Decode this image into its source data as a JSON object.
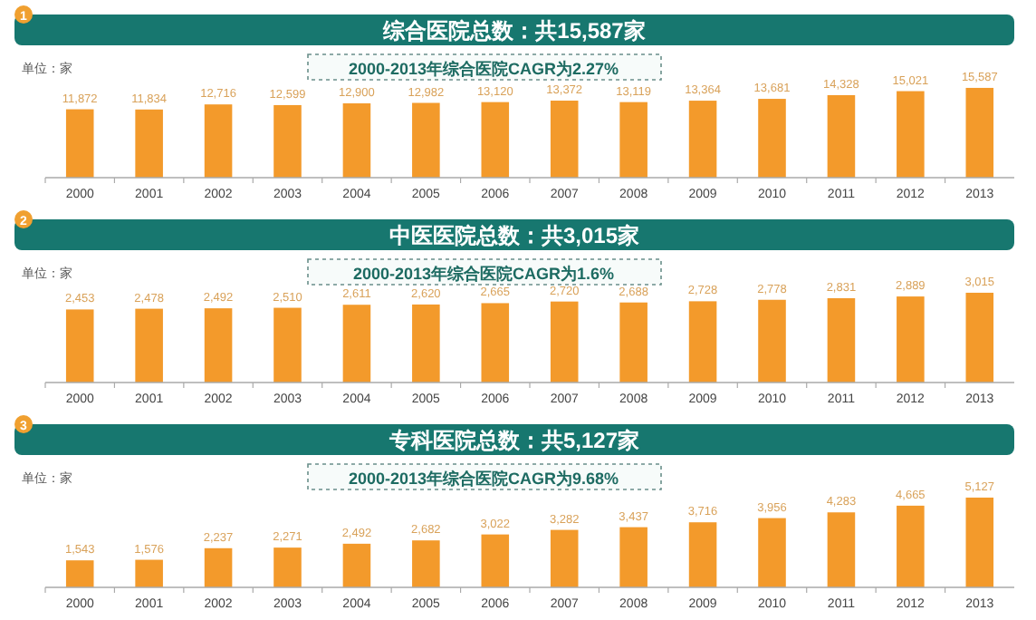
{
  "chart_data": [
    {
      "type": "bar",
      "title": "综合医院总数：共15,587家",
      "subtitle": "2000-2013年综合医院CAGR为2.27%",
      "annotations": [
        "1",
        "单位：家"
      ],
      "categories": [
        "2000",
        "2001",
        "2002",
        "2003",
        "2004",
        "2005",
        "2006",
        "2007",
        "2008",
        "2009",
        "2010",
        "2011",
        "2012",
        "2013"
      ],
      "values": [
        11872,
        11834,
        12716,
        12599,
        12900,
        12982,
        13120,
        13372,
        13119,
        13364,
        13681,
        14328,
        15021,
        15587
      ],
      "value_labels": [
        "11,872",
        "11,834",
        "12,716",
        "12,599",
        "12,900",
        "12,982",
        "13,120",
        "13,372",
        "13,119",
        "13,364",
        "13,681",
        "14,328",
        "15,021",
        "15,587"
      ],
      "color": "#f39a2b",
      "tick_labels": "x"
    },
    {
      "type": "bar",
      "title": "中医医院总数：共3,015家",
      "subtitle": "2000-2013年综合医院CAGR为1.6%",
      "annotations": [
        "2",
        "单位：家"
      ],
      "categories": [
        "2000",
        "2001",
        "2002",
        "2003",
        "2004",
        "2005",
        "2006",
        "2007",
        "2008",
        "2009",
        "2010",
        "2011",
        "2012",
        "2013"
      ],
      "values": [
        2453,
        2478,
        2492,
        2510,
        2611,
        2620,
        2665,
        2720,
        2688,
        2728,
        2778,
        2831,
        2889,
        3015
      ],
      "value_labels": [
        "2,453",
        "2,478",
        "2,492",
        "2,510",
        "2,611",
        "2,620",
        "2,665",
        "2,720",
        "2,688",
        "2,728",
        "2,778",
        "2,831",
        "2,889",
        "3,015"
      ],
      "color": "#f39a2b",
      "tick_labels": "x"
    },
    {
      "type": "bar",
      "title": "专科医院总数：共5,127家",
      "subtitle": "2000-2013年综合医院CAGR为9.68%",
      "annotations": [
        "3",
        "单位：家"
      ],
      "categories": [
        "2000",
        "2001",
        "2002",
        "2003",
        "2004",
        "2005",
        "2006",
        "2007",
        "2008",
        "2009",
        "2010",
        "2011",
        "2012",
        "2013"
      ],
      "values": [
        1543,
        1576,
        2237,
        2271,
        2492,
        2682,
        3022,
        3282,
        3437,
        3716,
        3956,
        4283,
        4665,
        5127
      ],
      "value_labels": [
        "1,543",
        "1,576",
        "2,237",
        "2,271",
        "2,492",
        "2,682",
        "3,022",
        "3,282",
        "3,437",
        "3,716",
        "3,956",
        "4,283",
        "4,665",
        "5,127"
      ],
      "color": "#f39a2b",
      "tick_labels": "x"
    }
  ]
}
